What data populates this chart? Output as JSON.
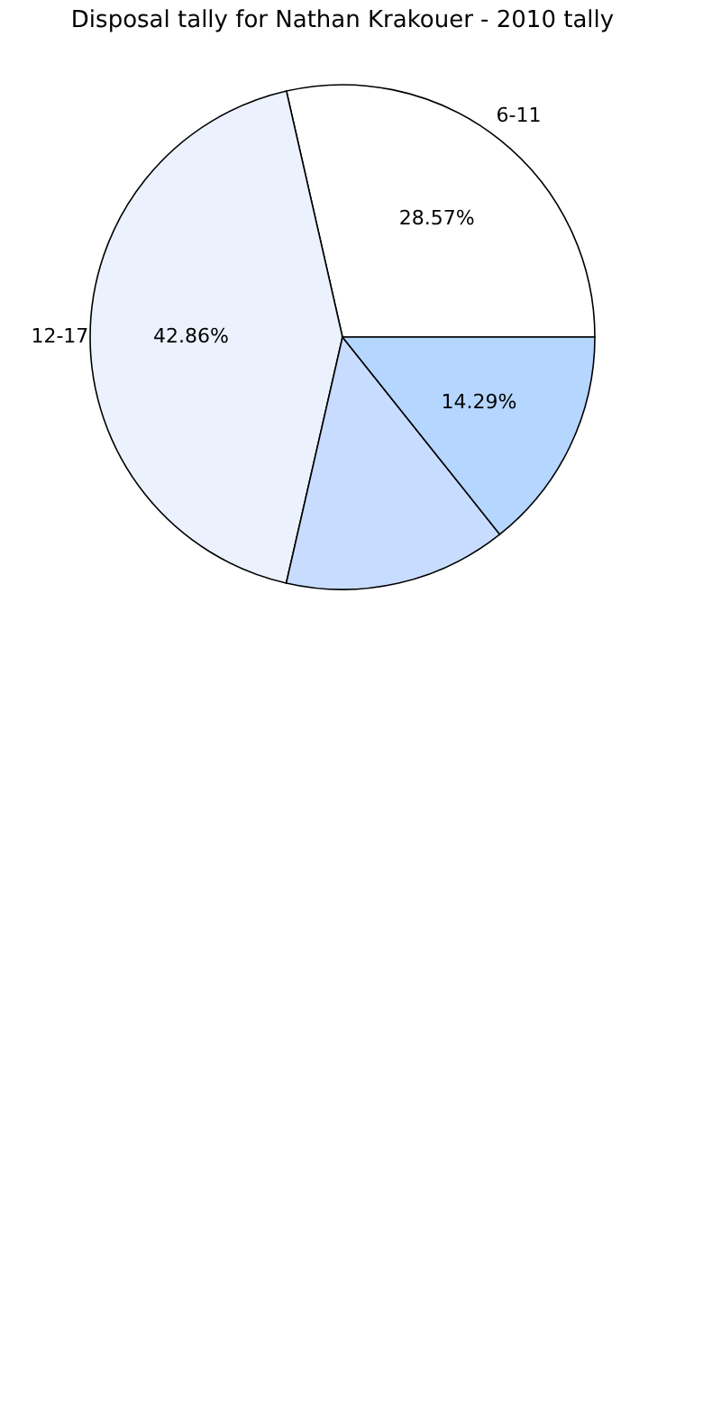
{
  "chart_data": {
    "type": "pie",
    "title": "Disposal tally for Nathan Krakouer - 2010 tally",
    "categories": [
      "6-11",
      "12-17",
      null,
      null
    ],
    "values": [
      28.57,
      42.86,
      14.29,
      14.29
    ],
    "colors": [
      "#ffffff",
      "#ebf2fe",
      "#c8dcff",
      "#b5d6ff"
    ],
    "value_labels": [
      "28.57%",
      "42.86%",
      null,
      "14.29%"
    ],
    "legend": false
  }
}
